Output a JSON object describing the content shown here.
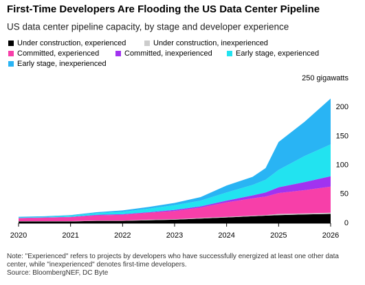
{
  "chart_data": {
    "type": "stacked_area",
    "title": "First-Time Developers Are Flooding the US Data Center Pipeline",
    "subtitle": "US data center pipeline capacity, by stage and developer experience",
    "x": [
      2020,
      2020.5,
      2021,
      2021.5,
      2022,
      2022.5,
      2023,
      2023.5,
      2024,
      2024.5,
      2024.75,
      2025,
      2025.5,
      2026
    ],
    "xlim": [
      2020,
      2026
    ],
    "xticks": [
      2020,
      2021,
      2022,
      2023,
      2024,
      2025,
      2026
    ],
    "ylim": [
      0,
      250
    ],
    "yticks": [
      0,
      50,
      100,
      150,
      200,
      {
        "value": 250,
        "label": "250 gigawatts"
      }
    ],
    "grid": false,
    "series": [
      {
        "name": "Under construction, experienced",
        "color": "#000000",
        "values": [
          3,
          3,
          3,
          4,
          4,
          5,
          6,
          8,
          10,
          12,
          13,
          14,
          15,
          16
        ]
      },
      {
        "name": "Under construction, inexperienced",
        "color": "#cccccc",
        "values": [
          0.5,
          0.5,
          0.5,
          0.5,
          0.5,
          1,
          1,
          1,
          1,
          1,
          1,
          2,
          2,
          2
        ]
      },
      {
        "name": "Committed, experienced",
        "color": "#f73fa9",
        "values": [
          5,
          6,
          7,
          9,
          10,
          12,
          14,
          18,
          25,
          30,
          32,
          36,
          40,
          45
        ]
      },
      {
        "name": "Committed, inexperienced",
        "color": "#a133f0",
        "values": [
          0.5,
          0.5,
          0.5,
          1,
          1,
          1,
          2,
          2,
          3,
          5,
          7,
          10,
          14,
          18
        ]
      },
      {
        "name": "Early stage, experienced",
        "color": "#22e3f0",
        "values": [
          1,
          1,
          2,
          3,
          4,
          6,
          8,
          10,
          14,
          18,
          22,
          30,
          45,
          55
        ]
      },
      {
        "name": "Early stage, inexperienced",
        "color": "#29b4f4",
        "values": [
          1,
          1,
          1,
          1.5,
          2.5,
          3,
          4,
          6,
          12,
          14,
          20,
          48,
          59,
          79
        ]
      }
    ],
    "note": "Note: \"Experienced\" refers to projects by developers who have successfully energized at least one other data center, while \"inexperienced\" denotes first-time developers.",
    "source": "Source: BloombergNEF, DC Byte"
  }
}
